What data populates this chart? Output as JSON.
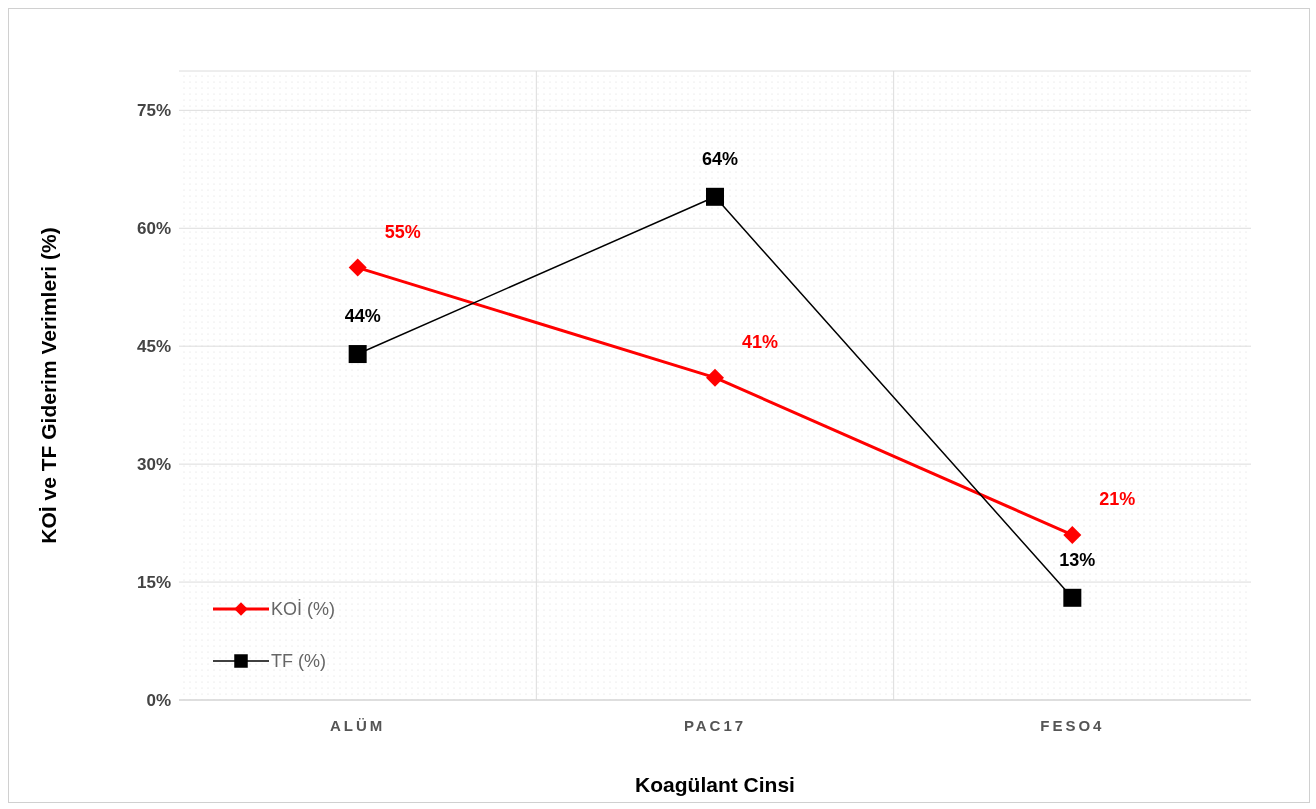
{
  "chart_data": {
    "type": "line",
    "xlabel": "Koagülant Cinsi",
    "ylabel": "KOİ ve TF Giderim Verimleri (%)",
    "categories": [
      "ALÜM",
      "PAC17",
      "FESO4"
    ],
    "series": [
      {
        "name": "KOİ (%)",
        "color": "#ff0000",
        "marker": "diamond",
        "values": [
          55,
          41,
          21
        ],
        "value_labels": [
          "55%",
          "41%",
          "21%"
        ]
      },
      {
        "name": "TF (%)",
        "color": "#000000",
        "marker": "square",
        "values": [
          44,
          64,
          13
        ],
        "value_labels": [
          "44%",
          "64%",
          "13%"
        ]
      }
    ],
    "ylim": [
      0,
      80
    ],
    "yticks": [
      {
        "value": 0,
        "label": "0%"
      },
      {
        "value": 15,
        "label": "15%"
      },
      {
        "value": 30,
        "label": "30%"
      },
      {
        "value": 45,
        "label": "45%"
      },
      {
        "value": 60,
        "label": "60%"
      },
      {
        "value": 75,
        "label": "75%"
      }
    ],
    "grid": true,
    "legend": "bottom left",
    "line_style": "solid"
  }
}
